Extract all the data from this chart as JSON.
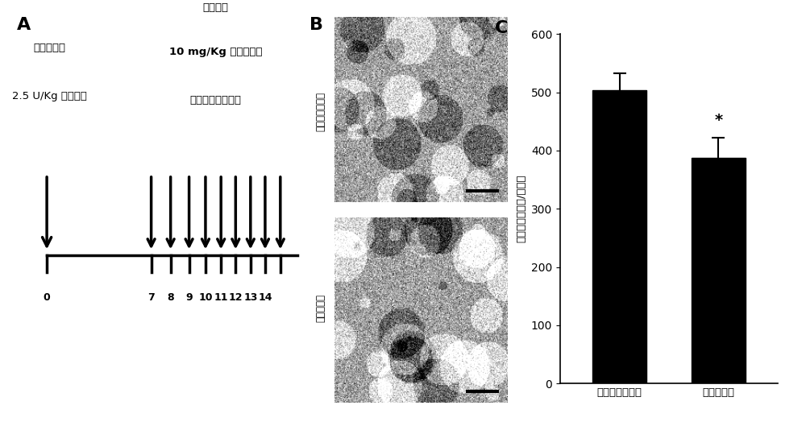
{
  "panel_A_label": "A",
  "panel_B_label": "B",
  "panel_C_label": "C",
  "tick_labels": [
    "0",
    "7",
    "8",
    "9",
    "10",
    "11",
    "12",
    "13",
    "14"
  ],
  "text_left_line1": "气管内注射",
  "text_left_line2": "2.5 U/Kg 博来霉素",
  "text_right_line1": "腹腔注射",
  "text_right_line2": "10 mg/Kg 盐酸石蓜碕",
  "text_right_line3": "或缧甲基纤维素钓",
  "bar_categories": [
    "缧甲基纤维素钓",
    "盐酸石蓜碕"
  ],
  "bar_values": [
    503,
    387
  ],
  "bar_errors": [
    30,
    35
  ],
  "bar_color": "#000000",
  "ylabel": "羟脲氨酸（微克/右肺）",
  "ylim": [
    0,
    600
  ],
  "yticks": [
    0,
    100,
    200,
    300,
    400,
    500,
    600
  ],
  "star_annotation": "*",
  "label_top_img": "缧甲基纤维素钓",
  "label_bot_img": "盐酸石蓜碕",
  "background_color": "#ffffff",
  "figure_width": 10.0,
  "figure_height": 5.29
}
